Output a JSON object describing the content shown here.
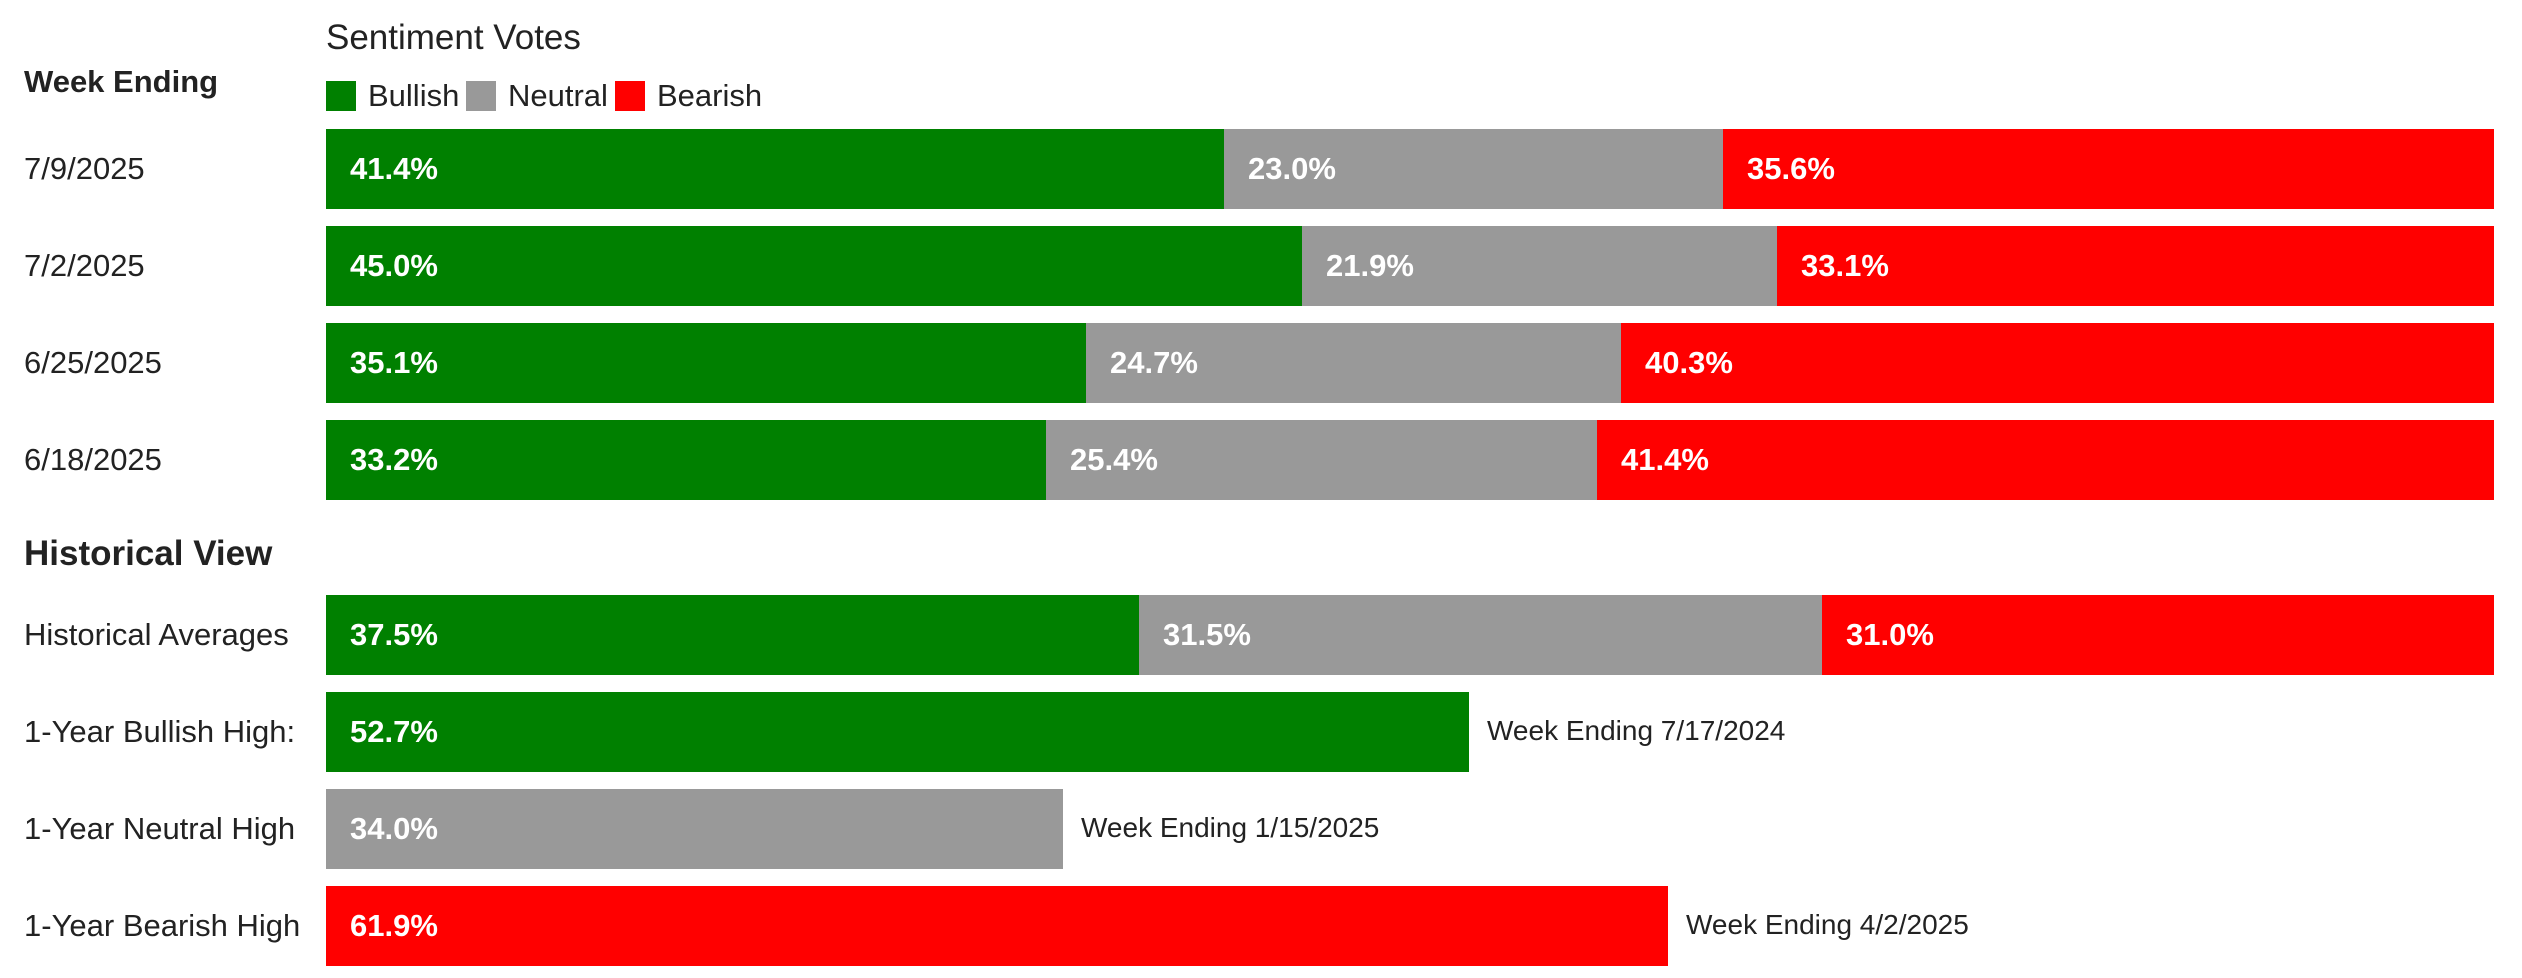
{
  "chart_data": {
    "type": "bar",
    "title": "Sentiment Votes",
    "row_header": "Week Ending",
    "section_header": "Historical View",
    "stacked": true,
    "orientation": "horizontal",
    "legend": [
      {
        "name": "Bullish",
        "color": "#008000"
      },
      {
        "name": "Neutral",
        "color": "#999999"
      },
      {
        "name": "Bearish",
        "color": "#ff0000"
      }
    ],
    "weekly": [
      {
        "label": "7/9/2025",
        "values": [
          41.4,
          23.0,
          35.6
        ],
        "texts": [
          "41.4%",
          "23.0%",
          "35.6%"
        ]
      },
      {
        "label": "7/2/2025",
        "values": [
          45.0,
          21.9,
          33.1
        ],
        "texts": [
          "45.0%",
          "21.9%",
          "33.1%"
        ]
      },
      {
        "label": "6/25/2025",
        "values": [
          35.1,
          24.7,
          40.3
        ],
        "texts": [
          "35.1%",
          "24.7%",
          "40.3%"
        ]
      },
      {
        "label": "6/18/2025",
        "values": [
          33.2,
          25.4,
          41.4
        ],
        "texts": [
          "33.2%",
          "25.4%",
          "41.4%"
        ]
      }
    ],
    "historical_average": {
      "label": "Historical Averages",
      "values": [
        37.5,
        31.5,
        31.0
      ],
      "texts": [
        "37.5%",
        "31.5%",
        "31.0%"
      ]
    },
    "highs": [
      {
        "label": "1-Year Bullish High:",
        "series": 0,
        "value": 52.7,
        "text": "52.7%",
        "note": "Week Ending 7/17/2024"
      },
      {
        "label": "1-Year Neutral High",
        "series": 1,
        "value": 34.0,
        "text": "34.0%",
        "note": "Week Ending 1/15/2025"
      },
      {
        "label": "1-Year Bearish High",
        "series": 2,
        "value": 61.9,
        "text": "61.9%",
        "note": "Week Ending 4/2/2025"
      }
    ]
  }
}
